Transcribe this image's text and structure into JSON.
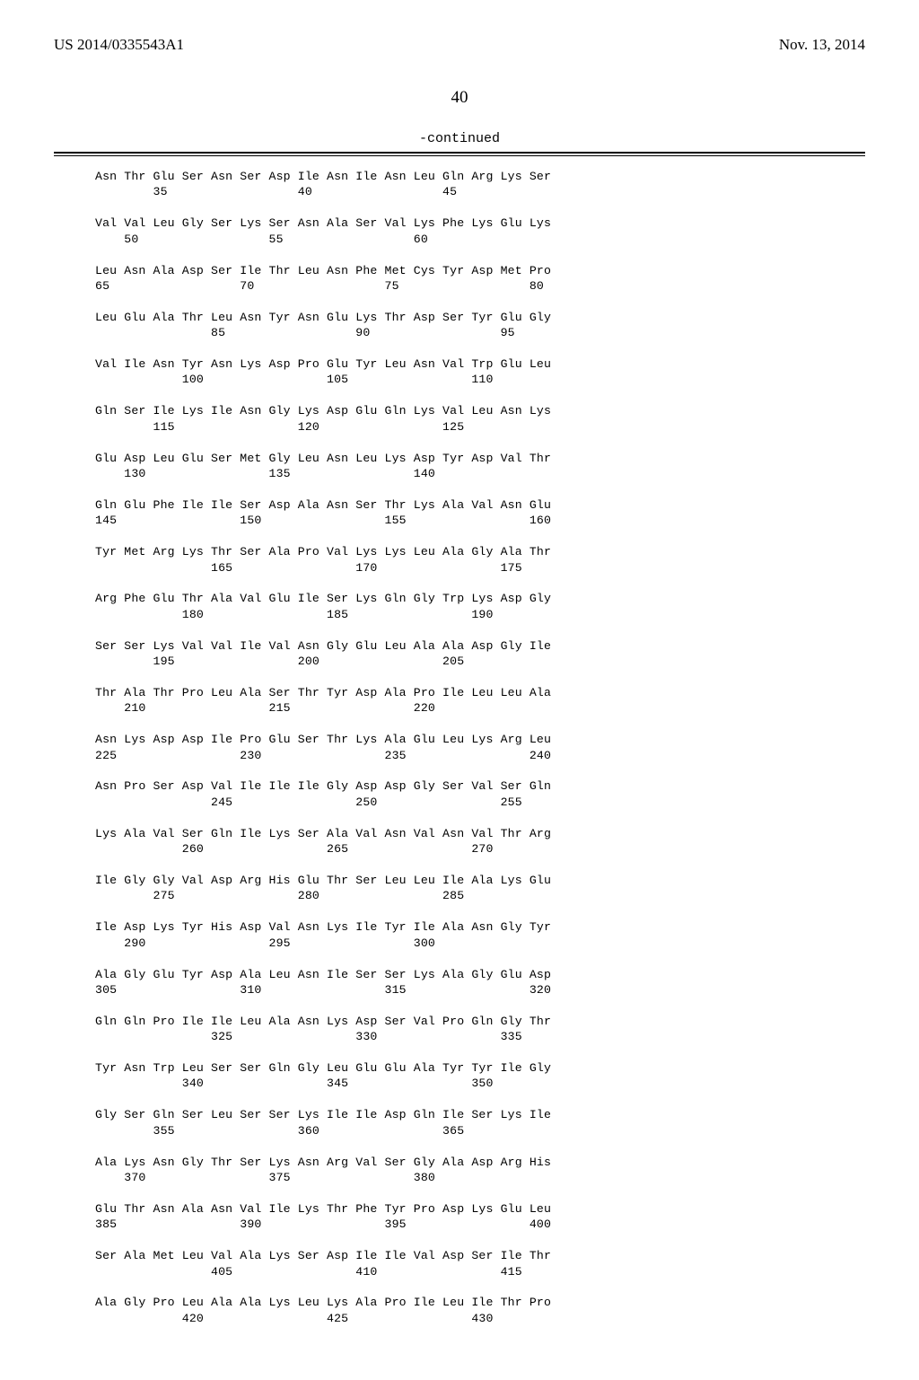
{
  "header": {
    "left": "US 2014/0335543A1",
    "right": "Nov. 13, 2014"
  },
  "page_number": "40",
  "continued_label": "-continued",
  "sequence_lines": [
    "Asn Thr Glu Ser Asn Ser Asp Ile Asn Ile Asn Leu Gln Arg Lys Ser",
    "        35                  40                  45",
    "",
    "Val Val Leu Gly Ser Lys Ser Asn Ala Ser Val Lys Phe Lys Glu Lys",
    "    50                  55                  60",
    "",
    "Leu Asn Ala Asp Ser Ile Thr Leu Asn Phe Met Cys Tyr Asp Met Pro",
    "65                  70                  75                  80",
    "",
    "Leu Glu Ala Thr Leu Asn Tyr Asn Glu Lys Thr Asp Ser Tyr Glu Gly",
    "                85                  90                  95",
    "",
    "Val Ile Asn Tyr Asn Lys Asp Pro Glu Tyr Leu Asn Val Trp Glu Leu",
    "            100                 105                 110",
    "",
    "Gln Ser Ile Lys Ile Asn Gly Lys Asp Glu Gln Lys Val Leu Asn Lys",
    "        115                 120                 125",
    "",
    "Glu Asp Leu Glu Ser Met Gly Leu Asn Leu Lys Asp Tyr Asp Val Thr",
    "    130                 135                 140",
    "",
    "Gln Glu Phe Ile Ile Ser Asp Ala Asn Ser Thr Lys Ala Val Asn Glu",
    "145                 150                 155                 160",
    "",
    "Tyr Met Arg Lys Thr Ser Ala Pro Val Lys Lys Leu Ala Gly Ala Thr",
    "                165                 170                 175",
    "",
    "Arg Phe Glu Thr Ala Val Glu Ile Ser Lys Gln Gly Trp Lys Asp Gly",
    "            180                 185                 190",
    "",
    "Ser Ser Lys Val Val Ile Val Asn Gly Glu Leu Ala Ala Asp Gly Ile",
    "        195                 200                 205",
    "",
    "Thr Ala Thr Pro Leu Ala Ser Thr Tyr Asp Ala Pro Ile Leu Leu Ala",
    "    210                 215                 220",
    "",
    "Asn Lys Asp Asp Ile Pro Glu Ser Thr Lys Ala Glu Leu Lys Arg Leu",
    "225                 230                 235                 240",
    "",
    "Asn Pro Ser Asp Val Ile Ile Ile Gly Asp Asp Gly Ser Val Ser Gln",
    "                245                 250                 255",
    "",
    "Lys Ala Val Ser Gln Ile Lys Ser Ala Val Asn Val Asn Val Thr Arg",
    "            260                 265                 270",
    "",
    "Ile Gly Gly Val Asp Arg His Glu Thr Ser Leu Leu Ile Ala Lys Glu",
    "        275                 280                 285",
    "",
    "Ile Asp Lys Tyr His Asp Val Asn Lys Ile Tyr Ile Ala Asn Gly Tyr",
    "    290                 295                 300",
    "",
    "Ala Gly Glu Tyr Asp Ala Leu Asn Ile Ser Ser Lys Ala Gly Glu Asp",
    "305                 310                 315                 320",
    "",
    "Gln Gln Pro Ile Ile Leu Ala Asn Lys Asp Ser Val Pro Gln Gly Thr",
    "                325                 330                 335",
    "",
    "Tyr Asn Trp Leu Ser Ser Gln Gly Leu Glu Glu Ala Tyr Tyr Ile Gly",
    "            340                 345                 350",
    "",
    "Gly Ser Gln Ser Leu Ser Ser Lys Ile Ile Asp Gln Ile Ser Lys Ile",
    "        355                 360                 365",
    "",
    "Ala Lys Asn Gly Thr Ser Lys Asn Arg Val Ser Gly Ala Asp Arg His",
    "    370                 375                 380",
    "",
    "Glu Thr Asn Ala Asn Val Ile Lys Thr Phe Tyr Pro Asp Lys Glu Leu",
    "385                 390                 395                 400",
    "",
    "Ser Ala Met Leu Val Ala Lys Ser Asp Ile Ile Val Asp Ser Ile Thr",
    "                405                 410                 415",
    "",
    "Ala Gly Pro Leu Ala Ala Lys Leu Lys Ala Pro Ile Leu Ile Thr Pro",
    "            420                 425                 430"
  ]
}
